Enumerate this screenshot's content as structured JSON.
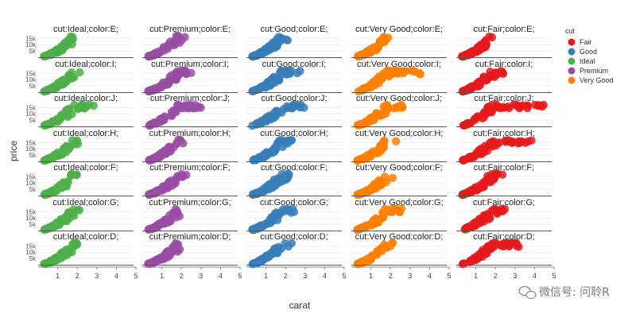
{
  "chart_data": {
    "type": "scatter",
    "facet_rows": [
      "E",
      "I",
      "J",
      "H",
      "F",
      "G",
      "D"
    ],
    "facet_cols": [
      "Ideal",
      "Premium",
      "Good",
      "Very Good",
      "Fair"
    ],
    "facet_titles": [
      [
        "cut:Ideal;color:E;",
        "cut:Premium;color:E;",
        "cut:Good;color:E;",
        "cut:Very Good;color:E;",
        "cut:Fair;color:E;"
      ],
      [
        "cut:Ideal;color:I;",
        "cut:Premium;color:I;",
        "cut:Good;color:I;",
        "cut:Very Good;color:I;",
        "cut:Fair;color:I;"
      ],
      [
        "cut:Ideal;color:J;",
        "cut:Premium;color:J;",
        "cut:Good;color:J;",
        "cut:Very Good;color:J;",
        "cut:Fair;color:J;"
      ],
      [
        "cut:Ideal;color:H;",
        "cut:Premium;color:H;",
        "cut:Good;color:H;",
        "cut:Very Good;color:H;",
        "cut:Fair;color:H;"
      ],
      [
        "cut:Ideal;color:F;",
        "cut:Premium;color:F;",
        "cut:Good;color:F;",
        "cut:Very Good;color:F;",
        "cut:Fair;color:F;"
      ],
      [
        "cut:Ideal;color:G;",
        "cut:Premium;color:G;",
        "cut:Good;color:G;",
        "cut:Very Good;color:G;",
        "cut:Fair;color:G;"
      ],
      [
        "cut:Ideal;color:D;",
        "cut:Premium;color:D;",
        "cut:Good;color:D;",
        "cut:Very Good;color:D;",
        "cut:Fair;color:D;"
      ]
    ],
    "xlabel": "carat",
    "ylabel": "price",
    "xlim": [
      0,
      5
    ],
    "ylim": [
      0,
      19000
    ],
    "x_ticks": [
      "1",
      "2",
      "3",
      "4",
      "5"
    ],
    "y_ticks": [
      "5k",
      "10k",
      "15k"
    ],
    "legend": {
      "title": "cut",
      "position": "top-right",
      "entries": [
        {
          "name": "Fair",
          "color": "#e41a1c"
        },
        {
          "name": "Good",
          "color": "#377eb8"
        },
        {
          "name": "Ideal",
          "color": "#4daf4a"
        },
        {
          "name": "Premium",
          "color": "#984ea3"
        },
        {
          "name": "Very Good",
          "color": "#ff7f00"
        }
      ]
    },
    "series_colors": {
      "Ideal": "#4daf4a",
      "Premium": "#984ea3",
      "Good": "#377eb8",
      "Very Good": "#ff7f00",
      "Fair": "#e41a1c"
    },
    "points_per_panel": 55,
    "carat_max": {
      "Ideal": [
        2.0,
        2.2,
        3.0,
        2.3,
        2.1,
        2.2,
        2.2
      ],
      "Premium": [
        2.3,
        3.0,
        4.0,
        2.4,
        2.4,
        2.4,
        2.3
      ],
      "Good": [
        2.3,
        2.8,
        3.0,
        2.5,
        2.4,
        2.6,
        2.4
      ],
      "Very Good": [
        2.2,
        4.0,
        3.0,
        2.4,
        2.3,
        2.8,
        2.3
      ],
      "Fair": [
        2.0,
        2.5,
        5.0,
        4.1,
        2.6,
        2.7,
        3.4
      ]
    },
    "grid": "horizontal"
  },
  "watermark": "微信号: 问聆R"
}
